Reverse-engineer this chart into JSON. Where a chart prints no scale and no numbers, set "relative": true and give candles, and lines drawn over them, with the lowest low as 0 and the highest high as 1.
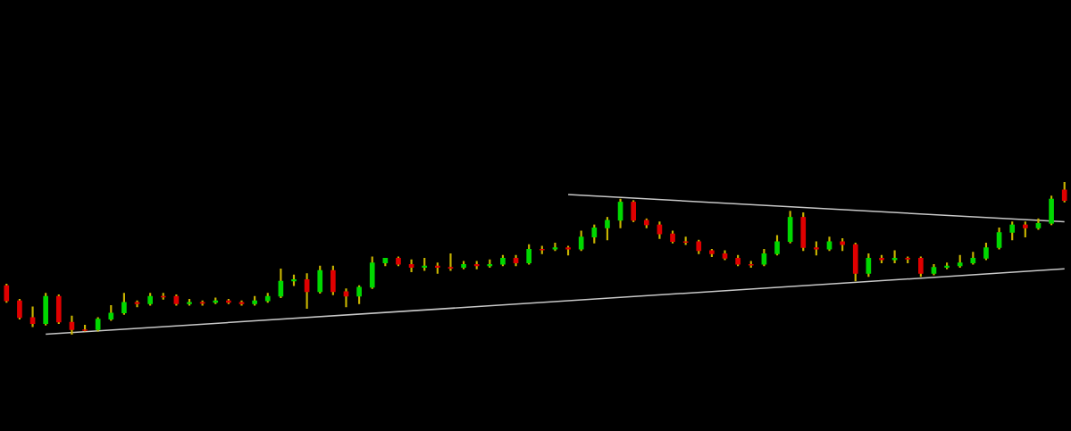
{
  "chart_data": {
    "type": "candlestick",
    "relative": true,
    "categories": [
      null,
      null,
      null,
      null,
      null,
      null,
      null,
      null,
      null,
      null,
      null,
      null,
      null,
      null,
      null,
      null,
      null,
      null,
      null,
      null,
      null,
      null,
      null,
      null,
      null,
      null,
      null,
      null,
      null,
      null,
      null,
      null,
      null,
      null,
      null,
      null,
      null,
      null,
      null,
      null,
      null,
      null,
      null,
      null,
      null,
      null,
      null,
      null,
      null,
      null,
      null,
      null,
      null,
      null,
      null,
      null,
      null,
      null,
      null,
      null,
      null,
      null,
      null,
      null,
      null,
      null,
      null,
      null,
      null,
      null,
      null,
      null,
      null,
      null,
      null,
      null,
      null,
      null,
      null,
      null,
      null,
      null
    ],
    "ohlc": [
      [
        0.32,
        0.33,
        0.21,
        0.22
      ],
      [
        0.22,
        0.23,
        0.1,
        0.11
      ],
      [
        0.11,
        0.18,
        0.05,
        0.07
      ],
      [
        0.07,
        0.27,
        0.06,
        0.25
      ],
      [
        0.25,
        0.26,
        0.07,
        0.08
      ],
      [
        0.08,
        0.12,
        0,
        0.03
      ],
      [
        0.03,
        0.06,
        0.02,
        0.03
      ],
      [
        0.03,
        0.11,
        0.02,
        0.1
      ],
      [
        0.1,
        0.19,
        0.09,
        0.14
      ],
      [
        0.14,
        0.27,
        0.13,
        0.21
      ],
      [
        0.21,
        0.22,
        0.18,
        0.2
      ],
      [
        0.2,
        0.27,
        0.19,
        0.25
      ],
      [
        0.25,
        0.27,
        0.23,
        0.25
      ],
      [
        0.25,
        0.26,
        0.19,
        0.2
      ],
      [
        0.2,
        0.23,
        0.19,
        0.21
      ],
      [
        0.21,
        0.22,
        0.19,
        0.21
      ],
      [
        0.21,
        0.24,
        0.2,
        0.22
      ],
      [
        0.22,
        0.23,
        0.2,
        0.21
      ],
      [
        0.21,
        0.22,
        0.19,
        0.2
      ],
      [
        0.2,
        0.25,
        0.19,
        0.22
      ],
      [
        0.22,
        0.27,
        0.21,
        0.25
      ],
      [
        0.25,
        0.43,
        0.24,
        0.35
      ],
      [
        0.35,
        0.39,
        0.32,
        0.36
      ],
      [
        0.36,
        0.4,
        0.17,
        0.28
      ],
      [
        0.28,
        0.45,
        0.27,
        0.42
      ],
      [
        0.42,
        0.45,
        0.26,
        0.28
      ],
      [
        0.28,
        0.3,
        0.18,
        0.25
      ],
      [
        0.25,
        0.32,
        0.2,
        0.31
      ],
      [
        0.31,
        0.51,
        0.3,
        0.47
      ],
      [
        0.47,
        0.5,
        0.45,
        0.5
      ],
      [
        0.5,
        0.51,
        0.45,
        0.46
      ],
      [
        0.46,
        0.49,
        0.41,
        0.44
      ],
      [
        0.44,
        0.5,
        0.42,
        0.45
      ],
      [
        0.45,
        0.47,
        0.4,
        0.44
      ],
      [
        0.44,
        0.53,
        0.42,
        0.44
      ],
      [
        0.44,
        0.48,
        0.43,
        0.46
      ],
      [
        0.46,
        0.48,
        0.43,
        0.45
      ],
      [
        0.45,
        0.49,
        0.44,
        0.46
      ],
      [
        0.46,
        0.52,
        0.45,
        0.5
      ],
      [
        0.5,
        0.52,
        0.45,
        0.47
      ],
      [
        0.47,
        0.59,
        0.46,
        0.56
      ],
      [
        0.56,
        0.58,
        0.53,
        0.56
      ],
      [
        0.56,
        0.6,
        0.55,
        0.57
      ],
      [
        0.57,
        0.58,
        0.52,
        0.56
      ],
      [
        0.56,
        0.68,
        0.55,
        0.64
      ],
      [
        0.64,
        0.72,
        0.6,
        0.7
      ],
      [
        0.7,
        0.77,
        0.62,
        0.75
      ],
      [
        0.75,
        0.89,
        0.7,
        0.87
      ],
      [
        0.87,
        0.88,
        0.74,
        0.75
      ],
      [
        0.75,
        0.76,
        0.7,
        0.72
      ],
      [
        0.72,
        0.74,
        0.63,
        0.66
      ],
      [
        0.66,
        0.68,
        0.6,
        0.61
      ],
      [
        0.61,
        0.64,
        0.59,
        0.61
      ],
      [
        0.61,
        0.62,
        0.53,
        0.55
      ],
      [
        0.55,
        0.56,
        0.51,
        0.53
      ],
      [
        0.53,
        0.55,
        0.49,
        0.5
      ],
      [
        0.5,
        0.52,
        0.45,
        0.46
      ],
      [
        0.46,
        0.48,
        0.44,
        0.46
      ],
      [
        0.46,
        0.56,
        0.45,
        0.53
      ],
      [
        0.53,
        0.65,
        0.52,
        0.61
      ],
      [
        0.61,
        0.81,
        0.6,
        0.77
      ],
      [
        0.77,
        0.8,
        0.55,
        0.57
      ],
      [
        0.57,
        0.61,
        0.52,
        0.56
      ],
      [
        0.56,
        0.64,
        0.55,
        0.61
      ],
      [
        0.61,
        0.63,
        0.55,
        0.59
      ],
      [
        0.59,
        0.6,
        0.35,
        0.4
      ],
      [
        0.4,
        0.53,
        0.38,
        0.5
      ],
      [
        0.5,
        0.52,
        0.47,
        0.49
      ],
      [
        0.49,
        0.55,
        0.47,
        0.5
      ],
      [
        0.5,
        0.51,
        0.47,
        0.5
      ],
      [
        0.5,
        0.51,
        0.38,
        0.4
      ],
      [
        0.4,
        0.46,
        0.39,
        0.44
      ],
      [
        0.44,
        0.47,
        0.43,
        0.45
      ],
      [
        0.45,
        0.52,
        0.44,
        0.47
      ],
      [
        0.47,
        0.54,
        0.46,
        0.5
      ],
      [
        0.5,
        0.6,
        0.49,
        0.57
      ],
      [
        0.57,
        0.7,
        0.56,
        0.67
      ],
      [
        0.67,
        0.74,
        0.62,
        0.72
      ],
      [
        0.72,
        0.74,
        0.64,
        0.7
      ],
      [
        0.7,
        0.76,
        0.69,
        0.73
      ],
      [
        0.73,
        0.91,
        0.72,
        0.89
      ],
      [
        0.95,
        1,
        0.87,
        0.88
      ]
    ],
    "colors": [
      "#e00000",
      "#e00000",
      "#e00000",
      "#00d800",
      "#e00000",
      "#e00000",
      "#e00000",
      "#00d800",
      "#00d800",
      "#00d800",
      "#e00000",
      "#00d800",
      "#e00000",
      "#e00000",
      "#00d800",
      "#e00000",
      "#00d800",
      "#e00000",
      "#e00000",
      "#00d800",
      "#00d800",
      "#00d800",
      "#00d800",
      "#e00000",
      "#00d800",
      "#e00000",
      "#e00000",
      "#00d800",
      "#00d800",
      "#00d800",
      "#e00000",
      "#e00000",
      "#00d800",
      "#e00000",
      "#e00000",
      "#00d800",
      "#e00000",
      "#00d800",
      "#00d800",
      "#e00000",
      "#00d800",
      "#e00000",
      "#00d800",
      "#e00000",
      "#00d800",
      "#00d800",
      "#00d800",
      "#00d800",
      "#e00000",
      "#e00000",
      "#e00000",
      "#e00000",
      "#e00000",
      "#e00000",
      "#e00000",
      "#e00000",
      "#e00000",
      "#e00000",
      "#00d800",
      "#00d800",
      "#00d800",
      "#e00000",
      "#e00000",
      "#00d800",
      "#e00000",
      "#e00000",
      "#00d800",
      "#e00000",
      "#00d800",
      "#e00000",
      "#e00000",
      "#00d800",
      "#00d800",
      "#00d800",
      "#00d800",
      "#00d800",
      "#00d800",
      "#00d800",
      "#e00000",
      "#00d800",
      "#00d800",
      "#e00000"
    ],
    "series": [
      {
        "type": "line",
        "color": "#c8c8c8",
        "values": [
          null,
          null,
          null,
          null,
          null,
          null,
          null,
          null,
          null,
          null,
          null,
          null,
          null,
          null,
          null,
          null,
          null,
          null,
          null,
          null,
          null,
          null,
          null,
          null,
          null,
          null,
          null,
          null,
          null,
          null,
          null,
          null,
          null,
          null,
          null,
          null,
          null,
          null,
          null,
          null,
          null,
          null,
          null,
          0.92,
          null,
          null,
          null,
          null,
          null,
          null,
          null,
          null,
          null,
          null,
          null,
          null,
          null,
          null,
          null,
          null,
          null,
          null,
          null,
          null,
          null,
          null,
          null,
          null,
          null,
          null,
          null,
          null,
          null,
          null,
          null,
          null,
          null,
          null,
          null,
          null,
          null,
          0.74
        ]
      },
      {
        "type": "line",
        "color": "#c8c8c8",
        "values": [
          null,
          null,
          null,
          0,
          null,
          null,
          null,
          null,
          null,
          null,
          null,
          null,
          null,
          null,
          null,
          null,
          null,
          null,
          null,
          null,
          null,
          null,
          null,
          null,
          null,
          null,
          null,
          null,
          null,
          null,
          null,
          null,
          null,
          null,
          null,
          null,
          null,
          null,
          null,
          null,
          null,
          null,
          null,
          null,
          null,
          null,
          null,
          null,
          null,
          null,
          null,
          null,
          null,
          null,
          null,
          null,
          null,
          null,
          null,
          null,
          null,
          null,
          null,
          null,
          null,
          null,
          null,
          null,
          null,
          null,
          null,
          null,
          null,
          null,
          null,
          null,
          null,
          null,
          null,
          null,
          null,
          0.43
        ]
      }
    ]
  }
}
